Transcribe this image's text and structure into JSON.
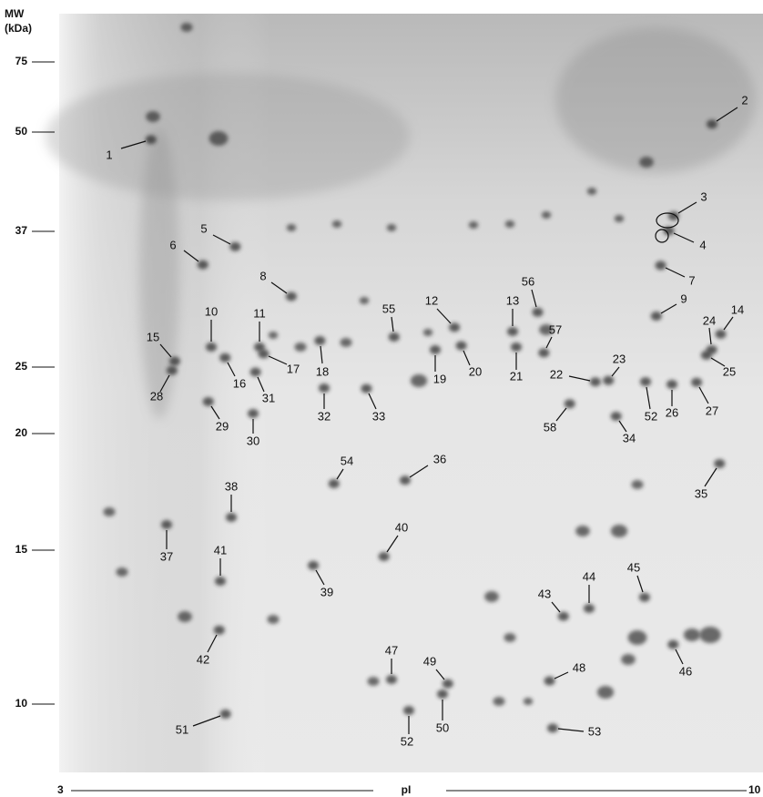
{
  "mw_axis": {
    "title": "MW",
    "unit": "(kDa)",
    "ticks": [
      "75",
      "50",
      "37",
      "25",
      "20",
      "15",
      "10"
    ]
  },
  "pi_axis": {
    "label": "pI",
    "start": "3",
    "end": "10"
  },
  "spots": [
    "1",
    "2",
    "3",
    "4",
    "5",
    "6",
    "7",
    "8",
    "9",
    "10",
    "11",
    "12",
    "13",
    "14",
    "15",
    "16",
    "17",
    "18",
    "19",
    "20",
    "21",
    "22",
    "23",
    "24",
    "25",
    "26",
    "27",
    "28",
    "29",
    "30",
    "31",
    "32",
    "33",
    "34",
    "35",
    "36",
    "37",
    "38",
    "39",
    "40",
    "41",
    "42",
    "43",
    "44",
    "45",
    "46",
    "47",
    "48",
    "49",
    "50",
    "51",
    "52",
    "52",
    "53",
    "54",
    "55",
    "56",
    "57",
    "58"
  ]
}
